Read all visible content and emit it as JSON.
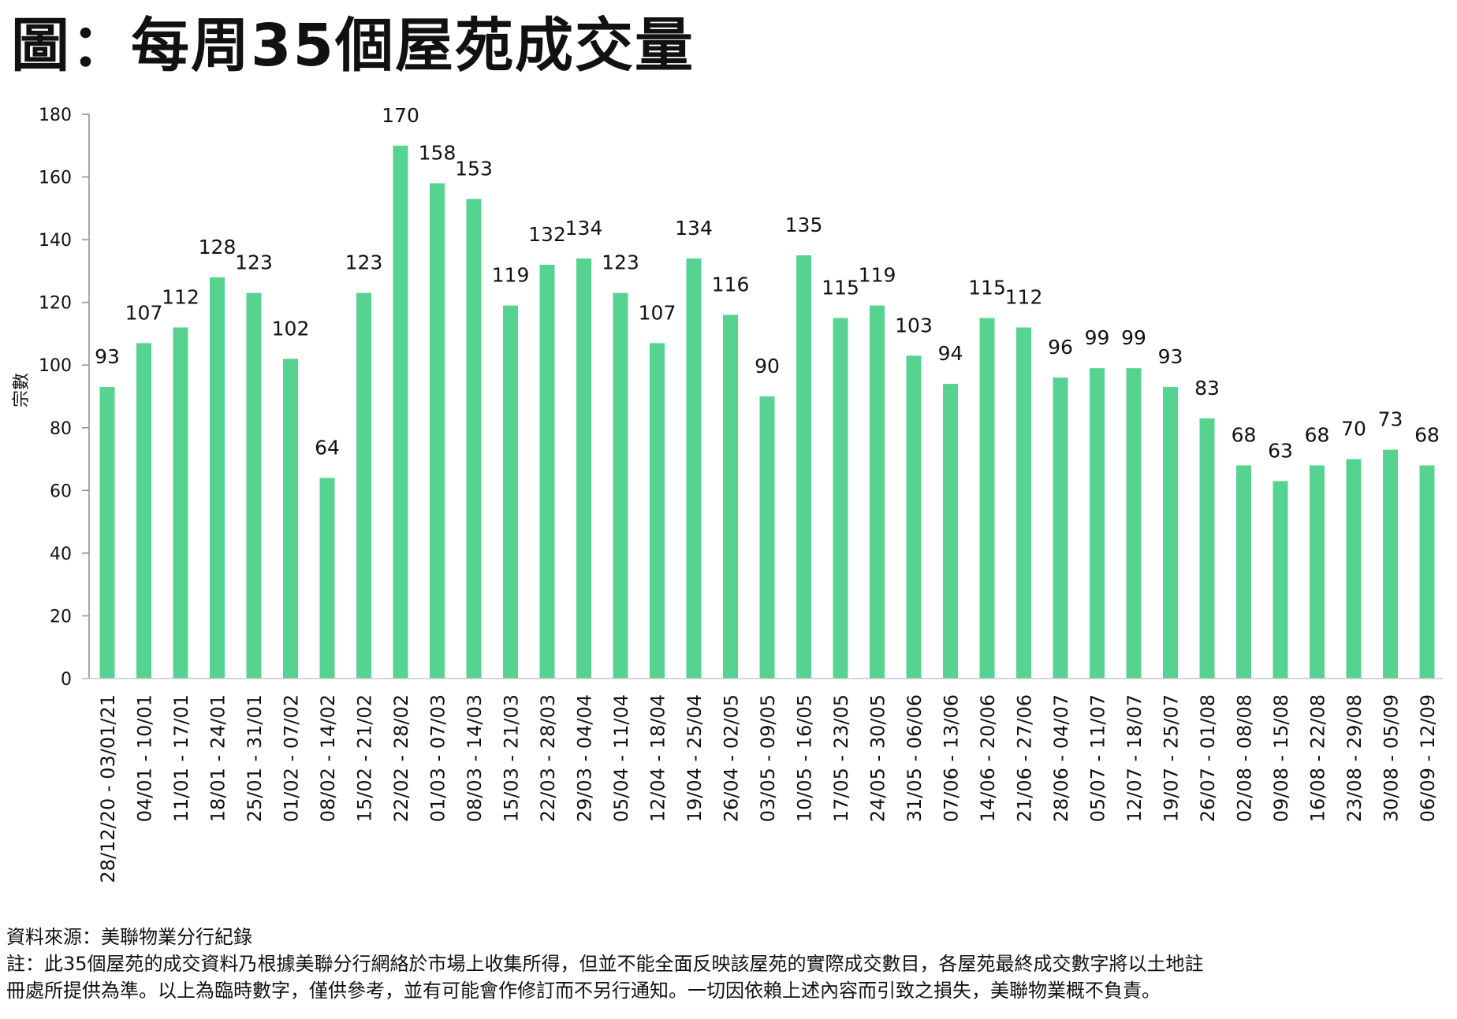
{
  "title": "圖：每周35個屋苑成交量",
  "footer": {
    "source": "資料來源：美聯物業分行紀錄",
    "note_line1": "註：此35個屋苑的成交資料乃根據美聯分行網絡於市場上收集所得，但並不能全面反映該屋苑的實際成交數目，各屋苑最終成交數字將以土地註",
    "note_line2": "冊處所提供為準。以上為臨時數字，僅供參考，並有可能會作修訂而不另行通知。一切因依賴上述內容而引致之損失，美聯物業概不負責。"
  },
  "colors": {
    "bar": "#56d390",
    "axis": "#8c8c8c",
    "text": "#111111"
  },
  "chart_data": {
    "type": "bar",
    "title": "圖：每周35個屋苑成交量",
    "xlabel": "",
    "ylabel": "宗數",
    "ylim": [
      0,
      180
    ],
    "yticks": [
      0,
      20,
      40,
      60,
      80,
      100,
      120,
      140,
      160,
      180
    ],
    "grid": false,
    "legend": "none",
    "categories": [
      "28/12/20 - 03/01/21",
      "04/01 - 10/01",
      "11/01 - 17/01",
      "18/01 - 24/01",
      "25/01 - 31/01",
      "01/02 - 07/02",
      "08/02 - 14/02",
      "15/02 - 21/02",
      "22/02 - 28/02",
      "01/03 - 07/03",
      "08/03 - 14/03",
      "15/03 - 21/03",
      "22/03 - 28/03",
      "29/03 - 04/04",
      "05/04 - 11/04",
      "12/04 - 18/04",
      "19/04 - 25/04",
      "26/04 - 02/05",
      "03/05 - 09/05",
      "10/05 - 16/05",
      "17/05 - 23/05",
      "24/05 - 30/05",
      "31/05 - 06/06",
      "07/06 - 13/06",
      "14/06 - 20/06",
      "21/06 - 27/06",
      "28/06 - 04/07",
      "05/07 - 11/07",
      "12/07 - 18/07",
      "19/07 - 25/07",
      "26/07 - 01/08",
      "02/08 - 08/08",
      "09/08 - 15/08",
      "16/08 - 22/08",
      "23/08 - 29/08",
      "30/08 - 05/09",
      "06/09 - 12/09"
    ],
    "values": [
      93,
      107,
      112,
      128,
      123,
      102,
      64,
      123,
      170,
      158,
      153,
      119,
      132,
      134,
      123,
      107,
      134,
      116,
      90,
      135,
      115,
      119,
      103,
      94,
      115,
      112,
      96,
      99,
      99,
      93,
      83,
      68,
      63,
      68,
      70,
      73,
      68
    ]
  }
}
